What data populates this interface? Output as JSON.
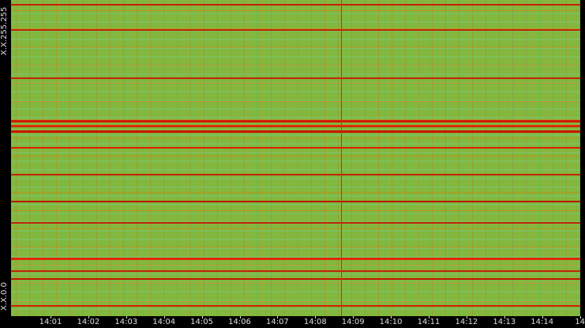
{
  "y_axis": {
    "top_label": "X.X.255.255",
    "bottom_label": "X.X.0.0"
  },
  "x_axis": {
    "labels": [
      "14:01",
      "14:02",
      "14:03",
      "14:04",
      "14:05",
      "14:06",
      "14:07",
      "14:08",
      "14:09",
      "14:10",
      "14:11",
      "14:12",
      "14:13",
      "14:14",
      "14"
    ]
  }
}
